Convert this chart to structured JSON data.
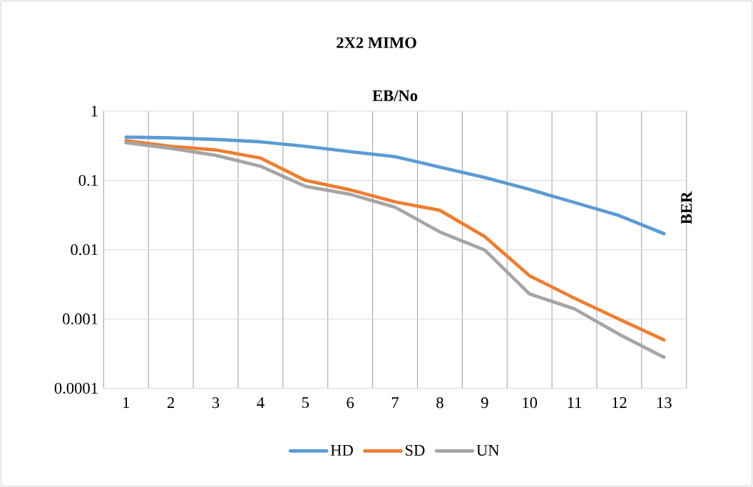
{
  "chart_data": {
    "type": "line",
    "title": "2X2 MIMO",
    "xlabel": "EB/No",
    "ylabel": "BER",
    "categories": [
      "1",
      "2",
      "3",
      "4",
      "5",
      "6",
      "7",
      "8",
      "9",
      "10",
      "11",
      "12",
      "13"
    ],
    "series": [
      {
        "name": "HD",
        "color": "#5b9bd5",
        "values": [
          0.42,
          0.41,
          0.39,
          0.36,
          0.31,
          0.26,
          0.22,
          0.155,
          0.11,
          0.074,
          0.048,
          0.031,
          0.017
        ]
      },
      {
        "name": "SD",
        "color": "#ed7d31",
        "values": [
          0.375,
          0.31,
          0.275,
          0.21,
          0.1,
          0.073,
          0.049,
          0.037,
          0.0155,
          0.0042,
          0.002,
          0.00099,
          0.0005
        ]
      },
      {
        "name": "UN",
        "color": "#a5a5a5",
        "values": [
          0.35,
          0.29,
          0.23,
          0.16,
          0.082,
          0.063,
          0.041,
          0.018,
          0.0099,
          0.0023,
          0.0014,
          0.0006,
          0.00028
        ]
      }
    ],
    "log": "y",
    "ylim": [
      0.0001,
      1
    ],
    "yticks": [
      0.0001,
      0.001,
      0.01,
      0.1,
      1
    ],
    "grid": true,
    "legend": "bottom",
    "marker": "none",
    "line_style": "solid"
  }
}
